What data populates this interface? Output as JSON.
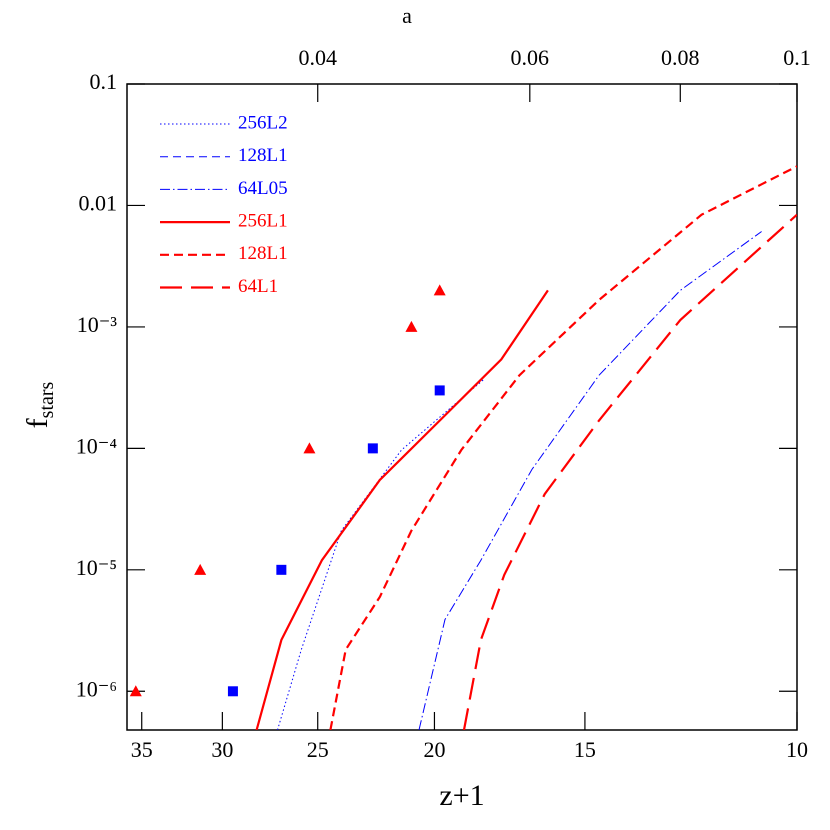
{
  "chart_data": {
    "type": "line",
    "xlabel": "z+1",
    "ylabel": {
      "main": "f",
      "sub": "stars"
    },
    "xscale": "log",
    "yscale": "log",
    "xlim": [
      36,
      10
    ],
    "ylim": [
      4.8e-07,
      0.1
    ],
    "xticks": [
      35,
      30,
      25,
      20,
      15,
      10
    ],
    "yticks": [
      0.1,
      0.01,
      {
        "value": 0.001,
        "label": "10⁻³"
      },
      {
        "value": 0.0001,
        "label": "10⁻⁴"
      },
      {
        "value": 1e-05,
        "label": "10⁻⁵"
      },
      {
        "value": 1e-06,
        "label": "10⁻⁶"
      }
    ],
    "top_axis": {
      "label": "a",
      "transform": "reciprocal",
      "ticks": [
        0.04,
        0.06,
        0.08,
        0.1
      ]
    },
    "legend": "upper left",
    "series": [
      {
        "name": "256L2",
        "color": "#0000ff",
        "dash": "dotted",
        "x": [
          27.0,
          25.8,
          23.9,
          21.3,
          18.2
        ],
        "values": [
          4.8e-07,
          2.2e-06,
          2.1e-05,
          9.7e-05,
          0.00037
        ]
      },
      {
        "name": "128L1",
        "color": "#0000ff",
        "dash": "dashed",
        "x": [],
        "values": []
      },
      {
        "name": "64L05",
        "color": "#0000ff",
        "dash": "dashdot",
        "x": [
          20.6,
          19.6,
          18.3,
          16.6,
          14.6,
          12.5,
          10.7
        ],
        "values": [
          4.8e-07,
          3.9e-06,
          1.2e-05,
          6.7e-05,
          0.0004,
          0.002,
          0.0061
        ]
      },
      {
        "name": "256L1",
        "color": "#ff0000",
        "dash": "solid",
        "x": [
          28.1,
          26.8,
          24.8,
          22.2,
          19.4,
          17.6,
          16.1
        ],
        "values": [
          4.8e-07,
          2.65e-06,
          1.2e-05,
          5.5e-05,
          0.000207,
          0.00054,
          0.002
        ]
      },
      {
        "name": "128L1",
        "color": "#ff0000",
        "dash": "shortdash",
        "x": [
          24.4,
          23.7,
          22.2,
          20.9,
          19.0,
          17.0,
          14.6,
          12.0,
          10
        ],
        "values": [
          4.8e-07,
          2.2e-06,
          6e-06,
          2.1e-05,
          9.7e-05,
          0.0004,
          0.00167,
          0.0084,
          0.021
        ]
      },
      {
        "name": "64L1",
        "color": "#ff0000",
        "dash": "longdash",
        "x": [
          18.9,
          18.3,
          17.5,
          16.2,
          14.6,
          12.5,
          10
        ],
        "values": [
          4.8e-07,
          2.65e-06,
          9.1e-06,
          4.2e-05,
          0.00017,
          0.00114,
          0.0084
        ]
      }
    ],
    "markers": [
      {
        "marker": "triangle",
        "color": "#ff0000",
        "x": [
          35.4,
          31.3,
          25.4,
          20.9,
          19.8
        ],
        "values": [
          1e-06,
          1e-05,
          0.0001,
          0.001,
          0.002
        ]
      },
      {
        "marker": "square",
        "color": "#0000ff",
        "x": [
          29.4,
          26.8,
          22.5,
          19.8
        ],
        "values": [
          1e-06,
          1e-05,
          0.0001,
          0.0003
        ]
      }
    ]
  }
}
